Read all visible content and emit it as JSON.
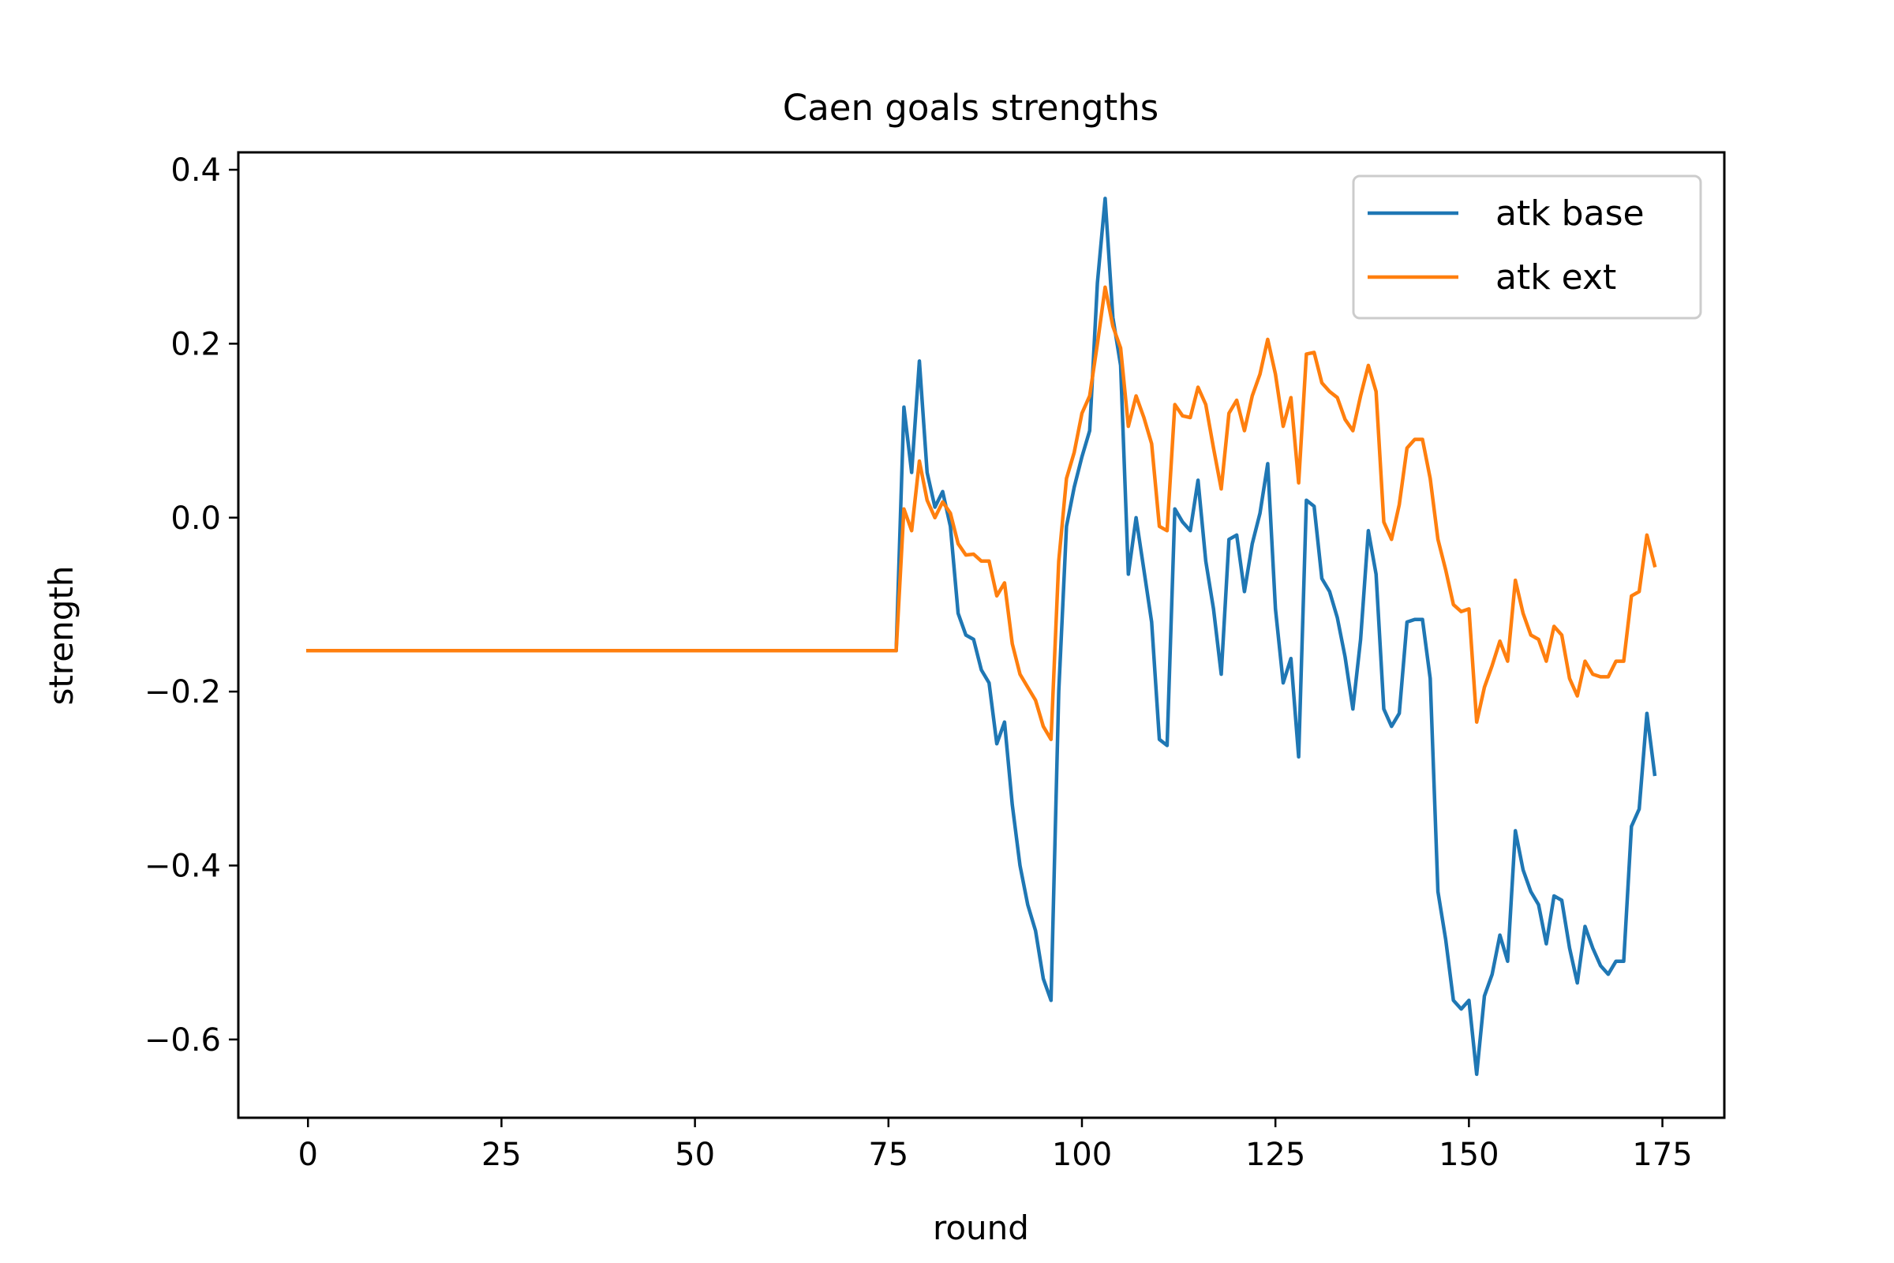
{
  "chart_data": {
    "type": "line",
    "title": "Caen goals strengths",
    "xlabel": "round",
    "ylabel": "strength",
    "xlim": [
      -9,
      183
    ],
    "ylim": [
      -0.69,
      0.42
    ],
    "xticks": [
      0,
      25,
      50,
      75,
      100,
      125,
      150,
      175
    ],
    "yticks": [
      0.4,
      0.2,
      0.0,
      -0.2,
      -0.4,
      -0.6
    ],
    "ytick_labels": [
      "0.4",
      "0.2",
      "0.0",
      "−0.2",
      "−0.4",
      "−0.6"
    ],
    "grid": false,
    "legend_position": "upper-right",
    "x_start": 0,
    "series": [
      {
        "name": "atk base",
        "color": "#1f77b4",
        "values": [
          -0.153,
          -0.153,
          -0.153,
          -0.153,
          -0.153,
          -0.153,
          -0.153,
          -0.153,
          -0.153,
          -0.153,
          -0.153,
          -0.153,
          -0.153,
          -0.153,
          -0.153,
          -0.153,
          -0.153,
          -0.153,
          -0.153,
          -0.153,
          -0.153,
          -0.153,
          -0.153,
          -0.153,
          -0.153,
          -0.153,
          -0.153,
          -0.153,
          -0.153,
          -0.153,
          -0.153,
          -0.153,
          -0.153,
          -0.153,
          -0.153,
          -0.153,
          -0.153,
          -0.153,
          -0.153,
          -0.153,
          -0.153,
          -0.153,
          -0.153,
          -0.153,
          -0.153,
          -0.153,
          -0.153,
          -0.153,
          -0.153,
          -0.153,
          -0.153,
          -0.153,
          -0.153,
          -0.153,
          -0.153,
          -0.153,
          -0.153,
          -0.153,
          -0.153,
          -0.153,
          -0.153,
          -0.153,
          -0.153,
          -0.153,
          -0.153,
          -0.153,
          -0.153,
          -0.153,
          -0.153,
          -0.153,
          -0.153,
          -0.153,
          -0.153,
          -0.153,
          -0.153,
          -0.153,
          -0.153,
          0.127,
          0.052,
          0.18,
          0.052,
          0.012,
          0.03,
          -0.01,
          -0.11,
          -0.135,
          -0.14,
          -0.175,
          -0.19,
          -0.26,
          -0.235,
          -0.33,
          -0.4,
          -0.445,
          -0.475,
          -0.53,
          -0.555,
          -0.2,
          -0.01,
          0.035,
          0.07,
          0.1,
          0.27,
          0.367,
          0.23,
          0.175,
          -0.065,
          0.0,
          -0.06,
          -0.12,
          -0.255,
          -0.262,
          0.01,
          -0.005,
          -0.015,
          0.043,
          -0.05,
          -0.105,
          -0.18,
          -0.025,
          -0.02,
          -0.085,
          -0.03,
          0.005,
          0.062,
          -0.105,
          -0.19,
          -0.162,
          -0.275,
          0.02,
          0.013,
          -0.07,
          -0.085,
          -0.115,
          -0.16,
          -0.22,
          -0.14,
          -0.015,
          -0.065,
          -0.22,
          -0.24,
          -0.225,
          -0.12,
          -0.117,
          -0.117,
          -0.185,
          -0.43,
          -0.485,
          -0.555,
          -0.565,
          -0.555,
          -0.64,
          -0.55,
          -0.525,
          -0.48,
          -0.51,
          -0.36,
          -0.405,
          -0.43,
          -0.445,
          -0.49,
          -0.435,
          -0.44,
          -0.495,
          -0.535,
          -0.47,
          -0.495,
          -0.515,
          -0.525,
          -0.51,
          -0.51,
          -0.355,
          -0.335,
          -0.225,
          -0.295
        ]
      },
      {
        "name": "atk ext",
        "color": "#ff7f0e",
        "values": [
          -0.153,
          -0.153,
          -0.153,
          -0.153,
          -0.153,
          -0.153,
          -0.153,
          -0.153,
          -0.153,
          -0.153,
          -0.153,
          -0.153,
          -0.153,
          -0.153,
          -0.153,
          -0.153,
          -0.153,
          -0.153,
          -0.153,
          -0.153,
          -0.153,
          -0.153,
          -0.153,
          -0.153,
          -0.153,
          -0.153,
          -0.153,
          -0.153,
          -0.153,
          -0.153,
          -0.153,
          -0.153,
          -0.153,
          -0.153,
          -0.153,
          -0.153,
          -0.153,
          -0.153,
          -0.153,
          -0.153,
          -0.153,
          -0.153,
          -0.153,
          -0.153,
          -0.153,
          -0.153,
          -0.153,
          -0.153,
          -0.153,
          -0.153,
          -0.153,
          -0.153,
          -0.153,
          -0.153,
          -0.153,
          -0.153,
          -0.153,
          -0.153,
          -0.153,
          -0.153,
          -0.153,
          -0.153,
          -0.153,
          -0.153,
          -0.153,
          -0.153,
          -0.153,
          -0.153,
          -0.153,
          -0.153,
          -0.153,
          -0.153,
          -0.153,
          -0.153,
          -0.153,
          -0.153,
          -0.153,
          0.01,
          -0.015,
          0.065,
          0.02,
          0.0,
          0.018,
          0.005,
          -0.03,
          -0.043,
          -0.042,
          -0.05,
          -0.05,
          -0.09,
          -0.075,
          -0.145,
          -0.18,
          -0.195,
          -0.21,
          -0.24,
          -0.255,
          -0.05,
          0.045,
          0.075,
          0.12,
          0.14,
          0.2,
          0.265,
          0.22,
          0.195,
          0.105,
          0.14,
          0.115,
          0.085,
          -0.01,
          -0.015,
          0.13,
          0.117,
          0.115,
          0.15,
          0.13,
          0.08,
          0.033,
          0.12,
          0.135,
          0.1,
          0.14,
          0.165,
          0.205,
          0.165,
          0.105,
          0.138,
          0.04,
          0.188,
          0.19,
          0.155,
          0.145,
          0.138,
          0.113,
          0.1,
          0.14,
          0.175,
          0.145,
          -0.005,
          -0.025,
          0.015,
          0.08,
          0.09,
          0.09,
          0.045,
          -0.025,
          -0.06,
          -0.1,
          -0.108,
          -0.105,
          -0.235,
          -0.195,
          -0.17,
          -0.142,
          -0.165,
          -0.072,
          -0.11,
          -0.135,
          -0.14,
          -0.165,
          -0.125,
          -0.135,
          -0.185,
          -0.205,
          -0.165,
          -0.18,
          -0.183,
          -0.183,
          -0.165,
          -0.165,
          -0.09,
          -0.085,
          -0.02,
          -0.055
        ]
      }
    ]
  }
}
